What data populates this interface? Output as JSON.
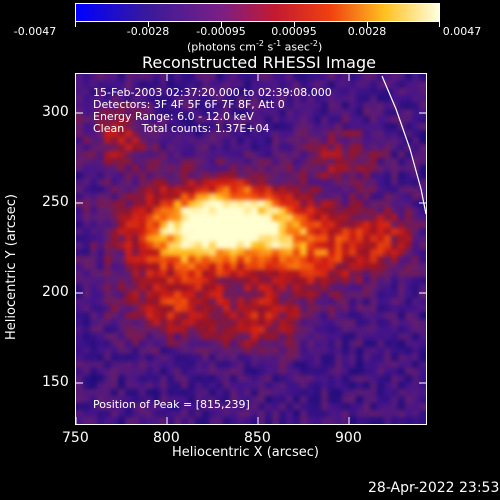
{
  "colorbar": {
    "tick_labels": [
      "-0.0047",
      "-0.0028",
      "-0.00095",
      "0.00095",
      "0.0028",
      "0.0047"
    ],
    "units_main": "(photons cm",
    "units_exp1": "-2",
    "units_mid": " s",
    "units_exp2": "-1",
    "units_mid2": " asec",
    "units_exp3": "-2",
    "units_end": ")"
  },
  "title": "Reconstructed RHESSI Image",
  "annotations": {
    "time_range": "15-Feb-2003 02:37:20.000 to 02:39:08.000",
    "detectors": "Detectors: 3F 4F 5F 6F 7F 8F, Att 0",
    "energy": "Energy Range: 6.0 - 12.0 keV",
    "clean": "Clean     Total counts: 1.37E+04",
    "peak": "Position of Peak = [815,239]"
  },
  "axes": {
    "xlabel": "Heliocentric X (arcsec)",
    "ylabel": "Heliocentric Y (arcsec)",
    "xticks": [
      "750",
      "800",
      "850",
      "900"
    ],
    "yticks": [
      "300",
      "250",
      "200",
      "150"
    ]
  },
  "footer": {
    "timestamp": "28-Apr-2022 23:53"
  },
  "colors": {
    "background": "#000000",
    "limb_line": "#ffffff"
  }
}
